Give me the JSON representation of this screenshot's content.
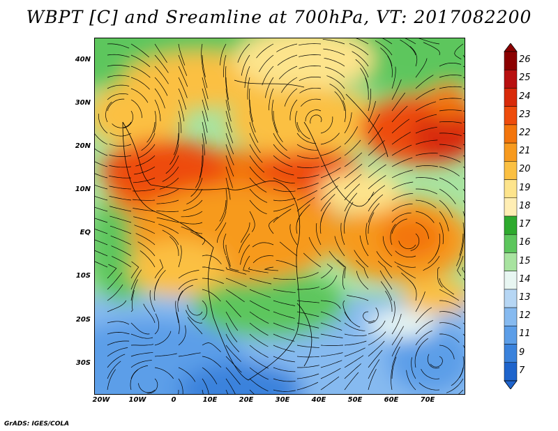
{
  "title": "WBPT [C] and Sreamline at 700hPa, VT: 2017082200",
  "credit": "GrADS: IGES/COLA",
  "map": {
    "lon_range": [
      -23,
      80
    ],
    "lat_range": [
      -36,
      45
    ],
    "lat_ticks": [
      "40N",
      "30N",
      "20N",
      "10N",
      "EQ",
      "10S",
      "20S",
      "30S"
    ],
    "lon_ticks": [
      "20W",
      "10W",
      "0",
      "10E",
      "20E",
      "30E",
      "40E",
      "50E",
      "60E",
      "70E"
    ],
    "variable": "Wet-bulb potential temperature at 700hPa with streamlines"
  },
  "colorbar": {
    "labels": [
      "26",
      "25",
      "24",
      "23",
      "22",
      "21",
      "20",
      "19",
      "18",
      "17",
      "16",
      "15",
      "14",
      "13",
      "12",
      "11",
      "9",
      "7"
    ],
    "colors": [
      "#8b0000",
      "#b81010",
      "#d82a0a",
      "#ee4c0c",
      "#f3750c",
      "#f79a1e",
      "#fbc042",
      "#fde48c",
      "#ffeeb4",
      "#2eaa2e",
      "#5dc65d",
      "#a8e3a0",
      "#e8f6f2",
      "#b6d6f4",
      "#86baf0",
      "#5c9ee8",
      "#3a82dc",
      "#1e64cc"
    ]
  }
}
